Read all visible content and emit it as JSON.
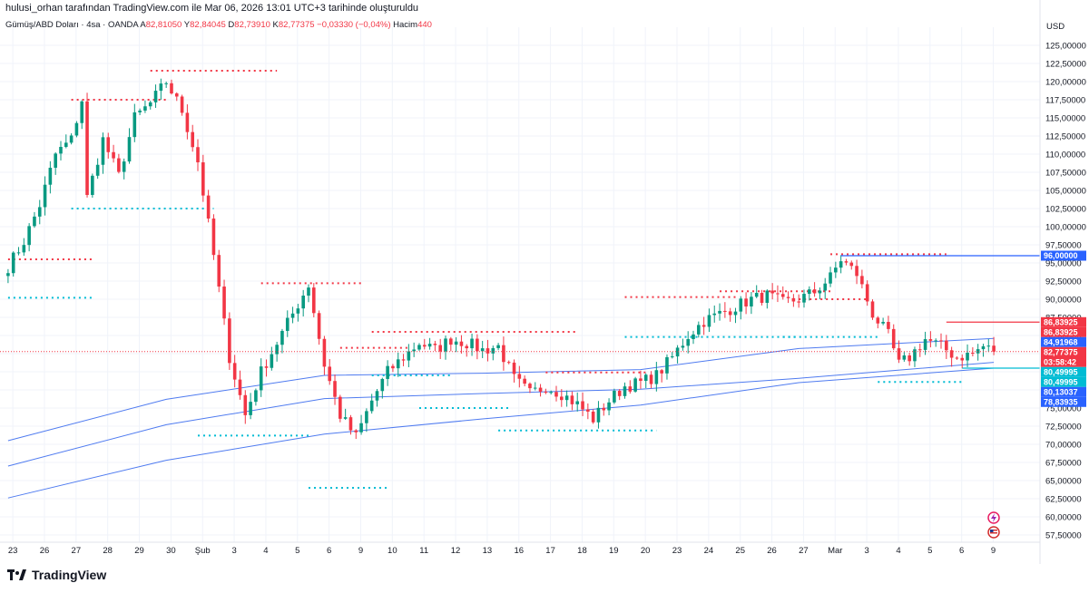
{
  "header": {
    "attribution": "hulusi_orhan tarafından TradingView.com ile Mar 06, 2026 13:01 UTC+3 tarihinde oluşturuldu"
  },
  "legend": {
    "symbol": "Gümüş/ABD Doları · 4sa · OANDA",
    "open_label": "A",
    "open_value": "82,81050",
    "high_label": "Y",
    "high_value": "82,84045",
    "low_label": "D",
    "low_value": "82,73910",
    "close_label": "K",
    "close_value": "82,77375",
    "change": "−0,03330 (−0,04%)",
    "volume_label": "Hacim",
    "volume_value": "440"
  },
  "brand": {
    "name": "TradingView"
  },
  "colors": {
    "up": "#089981",
    "down": "#f23645",
    "ma": "#4f7bf0",
    "grid": "#f0f3fa",
    "level_blue": "#2962ff",
    "level_cyan": "#00bcd4"
  },
  "icons": [
    "tradingview-logo-icon",
    "lightning-icon",
    "us-flag-icon"
  ],
  "chart_data": {
    "type": "candlestick",
    "title": "Gümüş/ABD Doları · 4sa · OANDA",
    "currency": "USD",
    "ylim": [
      56.5,
      127.5
    ],
    "y_ticks": [
      57.5,
      60,
      62.5,
      65,
      67.5,
      70,
      72.5,
      75,
      77.5,
      80,
      82.5,
      85,
      87.5,
      90,
      92.5,
      95,
      97.5,
      100,
      102.5,
      105,
      107.5,
      110,
      112.5,
      115,
      117.5,
      120,
      122.5,
      125
    ],
    "y_tick_labels": [
      "57,50000",
      "60,00000",
      "62,50000",
      "65,00000",
      "67,50000",
      "70,00000",
      "72,50000",
      "75,00000",
      "77,50000",
      "80,00000",
      "82,50000",
      "85,00000",
      "87,50000",
      "90,00000",
      "92,50000",
      "95,00000",
      "97,50000",
      "100,00000",
      "102,50000",
      "105,00000",
      "107,50000",
      "110,00000",
      "112,50000",
      "115,00000",
      "117,50000",
      "120,00000",
      "122,50000",
      "125,00000"
    ],
    "x_labels": [
      "23",
      "26",
      "27",
      "28",
      "29",
      "30",
      "Şub",
      "3",
      "4",
      "5",
      "6",
      "9",
      "10",
      "11",
      "12",
      "13",
      "16",
      "17",
      "18",
      "19",
      "20",
      "23",
      "24",
      "25",
      "26",
      "27",
      "Mar",
      "3",
      "4",
      "5",
      "6",
      "9"
    ],
    "x_index": [
      0.3,
      2.3,
      4.3,
      6.3,
      8.3,
      10.3,
      12.3,
      14.3,
      16.3,
      18.3,
      20.3,
      22.3,
      24.3,
      26.3,
      28.3,
      30.3,
      32.3,
      34.3,
      36.3,
      38.3,
      40.3,
      42.3,
      44.3,
      46.3,
      48.3,
      50.3,
      52.3,
      54.3,
      56.3,
      58.3,
      60.3,
      62.3
    ],
    "bars_per_day": 6,
    "waypoints": [
      [
        0,
        94.5
      ],
      [
        3,
        98
      ],
      [
        6,
        103
      ],
      [
        9,
        110
      ],
      [
        12,
        112
      ],
      [
        14,
        117.5
      ],
      [
        15,
        104
      ],
      [
        18,
        112
      ],
      [
        21,
        107
      ],
      [
        24,
        115
      ],
      [
        27,
        117
      ],
      [
        30,
        120
      ],
      [
        33,
        116
      ],
      [
        36,
        109
      ],
      [
        39,
        96
      ],
      [
        42,
        82
      ],
      [
        45,
        74
      ],
      [
        48,
        80
      ],
      [
        51,
        84
      ],
      [
        54,
        88
      ],
      [
        57,
        92
      ],
      [
        60,
        81
      ],
      [
        63,
        74
      ],
      [
        66,
        71
      ],
      [
        69,
        76
      ],
      [
        72,
        80
      ],
      [
        75,
        82
      ],
      [
        78,
        84
      ],
      [
        81,
        83
      ],
      [
        84,
        84.5
      ],
      [
        87,
        84
      ],
      [
        90,
        83
      ],
      [
        93,
        83.5
      ],
      [
        96,
        79
      ],
      [
        99,
        77
      ],
      [
        102,
        78
      ],
      [
        105,
        77
      ],
      [
        108,
        75.5
      ],
      [
        111,
        73.5
      ],
      [
        114,
        76
      ],
      [
        117,
        78
      ],
      [
        120,
        78.5
      ],
      [
        123,
        79.5
      ],
      [
        126,
        82
      ],
      [
        129,
        85
      ],
      [
        132,
        87
      ],
      [
        135,
        88
      ],
      [
        138,
        89
      ],
      [
        141,
        90
      ],
      [
        144,
        90.5
      ],
      [
        147,
        89.5
      ],
      [
        150,
        90
      ],
      [
        153,
        91
      ],
      [
        156,
        93
      ],
      [
        158,
        95.5
      ],
      [
        161,
        93.5
      ],
      [
        164,
        88
      ],
      [
        167,
        85
      ],
      [
        169,
        81
      ],
      [
        171,
        82
      ],
      [
        174,
        84.5
      ],
      [
        177,
        83.5
      ],
      [
        180,
        82
      ],
      [
        183,
        82.5
      ],
      [
        185,
        83.5
      ],
      [
        187,
        82.77
      ]
    ],
    "moving_averages": [
      {
        "points": [
          [
            0,
            70.5
          ],
          [
            30,
            76.2
          ],
          [
            60,
            79.5
          ],
          [
            90,
            79.8
          ],
          [
            120,
            80.3
          ],
          [
            150,
            83.2
          ],
          [
            187,
            84.6
          ]
        ]
      },
      {
        "points": [
          [
            0,
            67
          ],
          [
            30,
            72.7
          ],
          [
            60,
            76.3
          ],
          [
            90,
            77
          ],
          [
            120,
            77.6
          ],
          [
            150,
            79.1
          ],
          [
            187,
            81.3
          ]
        ]
      },
      {
        "points": [
          [
            0,
            62.6
          ],
          [
            30,
            67.8
          ],
          [
            60,
            71.4
          ],
          [
            90,
            73.5
          ],
          [
            120,
            75.4
          ],
          [
            150,
            78.5
          ],
          [
            187,
            80.5
          ]
        ]
      }
    ],
    "dotted_levels": [
      {
        "kind": "resistance",
        "x": [
          0,
          16
        ],
        "y": 95.5
      },
      {
        "kind": "support",
        "x": [
          0,
          16
        ],
        "y": 90.2
      },
      {
        "kind": "resistance",
        "x": [
          12,
          30
        ],
        "y": 117.5
      },
      {
        "kind": "support",
        "x": [
          12,
          39
        ],
        "y": 102.5
      },
      {
        "kind": "resistance",
        "x": [
          27,
          51
        ],
        "y": 121.5
      },
      {
        "kind": "support",
        "x": [
          36,
          57
        ],
        "y": 71.2
      },
      {
        "kind": "resistance",
        "x": [
          48,
          67
        ],
        "y": 92.2
      },
      {
        "kind": "support",
        "x": [
          57,
          72
        ],
        "y": 64
      },
      {
        "kind": "resistance",
        "x": [
          69,
          108
        ],
        "y": 85.5
      },
      {
        "kind": "resistance",
        "x": [
          63,
          76
        ],
        "y": 83.3
      },
      {
        "kind": "support",
        "x": [
          69,
          84
        ],
        "y": 79.5
      },
      {
        "kind": "support",
        "x": [
          78,
          95
        ],
        "y": 75
      },
      {
        "kind": "support",
        "x": [
          93,
          123
        ],
        "y": 71.9
      },
      {
        "kind": "resistance",
        "x": [
          102,
          121
        ],
        "y": 79.9
      },
      {
        "kind": "resistance",
        "x": [
          117,
          138
        ],
        "y": 90.3
      },
      {
        "kind": "support",
        "x": [
          117,
          150
        ],
        "y": 84.8
      },
      {
        "kind": "resistance",
        "x": [
          135,
          156
        ],
        "y": 91.1
      },
      {
        "kind": "resistance",
        "x": [
          150,
          163
        ],
        "y": 90
      },
      {
        "kind": "resistance",
        "x": [
          156,
          178
        ],
        "y": 96.2
      },
      {
        "kind": "support",
        "x": [
          147,
          165
        ],
        "y": 84.8
      },
      {
        "kind": "support",
        "x": [
          165,
          181
        ],
        "y": 78.6
      }
    ],
    "horizontal_lines": [
      {
        "x_start": 158,
        "y": 96.0,
        "color": "#2962ff"
      },
      {
        "x_start": 178,
        "y": 86.84,
        "color": "#f23645"
      },
      {
        "x_start": 181,
        "y": 80.5,
        "color": "#00bcd4"
      }
    ],
    "current_price": 82.77375,
    "price_tags": [
      {
        "y": 96.0,
        "text": "96,00000",
        "color": "#2962ff"
      },
      {
        "y": 86.83925,
        "text": "86,83925",
        "color": "#f23645"
      },
      {
        "y": 86.83925,
        "text": "86,83925",
        "color": "#f23645"
      },
      {
        "y": 84.91968,
        "text": "84,91968",
        "color": "#2962ff"
      },
      {
        "y": 82.77375,
        "text": "82,77375",
        "color": "#f23645",
        "sub": "03:58:42"
      },
      {
        "y": 80.49995,
        "text": "80,49995",
        "color": "#00bcd4"
      },
      {
        "y": 80.49995,
        "text": "80,49995",
        "color": "#00bcd4"
      },
      {
        "y": 80.13037,
        "text": "80,13037",
        "color": "#2962ff"
      },
      {
        "y": 78.83935,
        "text": "78,83935",
        "color": "#2962ff"
      }
    ]
  }
}
